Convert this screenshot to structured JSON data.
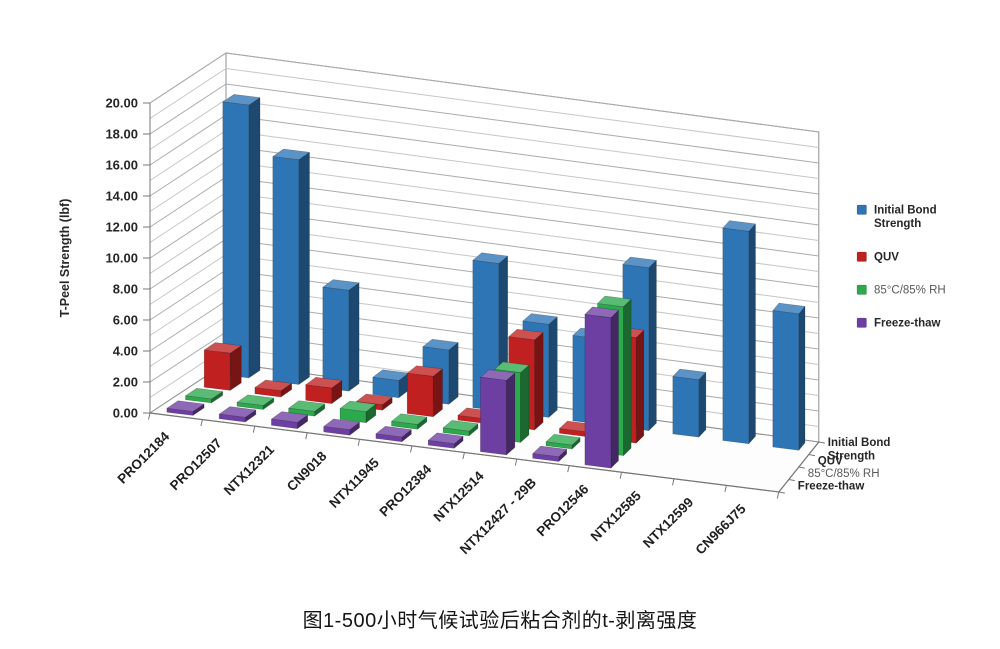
{
  "figure": {
    "caption": "图1-500小时气候试验后粘合剂的t-剥离强度"
  },
  "chart_data": {
    "type": "bar",
    "projection": "3d",
    "title": "",
    "xlabel": "",
    "ylabel": "T-Peel Strength (lbf)",
    "ylim": [
      0,
      20
    ],
    "y_major_step": 2,
    "y_minor_step": 1,
    "y_tick_decimals": 2,
    "grid": true,
    "legend_position": "right",
    "categories": [
      "PRO12184",
      "PRO12507",
      "NTX12321",
      "CN9018",
      "NTX11945",
      "PRO12384",
      "NTX12514",
      "NTX12427 - 29B",
      "PRO12546",
      "NTX12585",
      "NTX12599",
      "CN966J75"
    ],
    "series": [
      {
        "name": "Initial Bond Strength",
        "color": "#2E75B6",
        "values": [
          17.6,
          14.5,
          6.5,
          1.1,
          3.5,
          9.5,
          6.0,
          5.5,
          10.5,
          3.7,
          13.7,
          8.8
        ]
      },
      {
        "name": "QUV",
        "color": "#C02020",
        "values": [
          2.4,
          0.4,
          1.0,
          0.35,
          2.6,
          0.3,
          5.8,
          0.3,
          6.8,
          0,
          0,
          0
        ]
      },
      {
        "name": "85°C/85% RH",
        "color": "#2CA84D",
        "values": [
          0.25,
          0.25,
          0.3,
          0.7,
          0.3,
          0.3,
          4.5,
          0.25,
          9.6,
          0,
          0,
          0
        ]
      },
      {
        "name": "Freeze-thaw",
        "color": "#6E3FA3",
        "values": [
          0.25,
          0.3,
          0.4,
          0.35,
          0.3,
          0.3,
          4.8,
          0.3,
          9.7,
          0,
          0,
          0
        ]
      }
    ],
    "depth_axis_labels": [
      "Initial Bond Strength",
      "QUV",
      "85°C/85% RH",
      "Freeze-thaw"
    ],
    "legend_labels": [
      "Initial Bond Strength",
      "QUV",
      "85°C/85% RH",
      "Freeze-thaw"
    ]
  }
}
